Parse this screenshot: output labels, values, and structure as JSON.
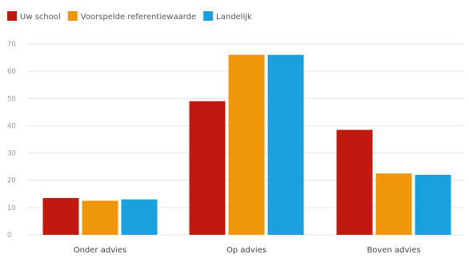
{
  "chart_data": {
    "type": "bar",
    "categories": [
      "Onder advies",
      "Op advies",
      "Boven advies"
    ],
    "series": [
      {
        "name": "Uw school",
        "values": [
          13.5,
          49,
          38.5
        ]
      },
      {
        "name": "Voorspelde referentiewaarde",
        "values": [
          12.5,
          66,
          22.5
        ]
      },
      {
        "name": "Landelijk",
        "values": [
          13,
          66,
          22
        ]
      }
    ],
    "colors": [
      "#c01a10",
      "#f0960a",
      "#1aa0dc"
    ],
    "yticks": [
      "0",
      "10",
      "20",
      "30",
      "40",
      "50",
      "60",
      "70"
    ],
    "ylim": [
      0,
      70
    ],
    "grid": true,
    "legend_position": "top-left",
    "title": "",
    "xlabel": "",
    "ylabel": ""
  }
}
